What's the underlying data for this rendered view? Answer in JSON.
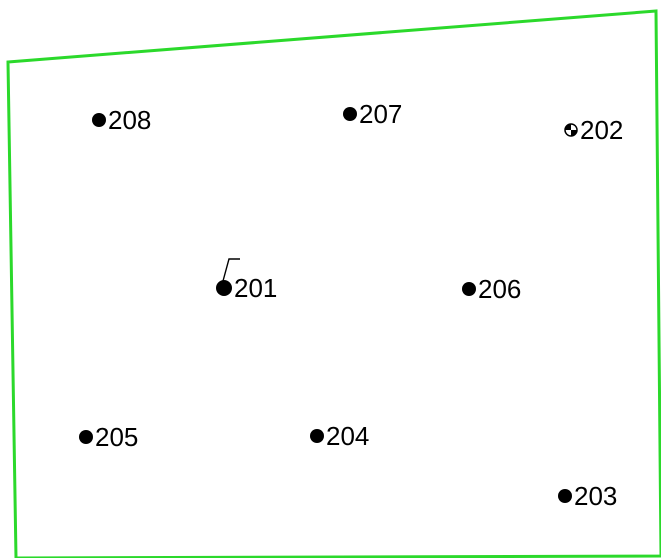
{
  "boundary": {
    "color": "#2bd92b"
  },
  "points": {
    "p208": {
      "label": "208",
      "symbol": "filled-dot"
    },
    "p207": {
      "label": "207",
      "symbol": "filled-dot"
    },
    "p202": {
      "label": "202",
      "symbol": "quartered-control-circle"
    },
    "p201": {
      "label": "201",
      "symbol": "filled-dot-with-flag"
    },
    "p206": {
      "label": "206",
      "symbol": "filled-dot"
    },
    "p205": {
      "label": "205",
      "symbol": "filled-dot"
    },
    "p204": {
      "label": "204",
      "symbol": "filled-dot"
    },
    "p203": {
      "label": "203",
      "symbol": "filled-dot"
    }
  }
}
